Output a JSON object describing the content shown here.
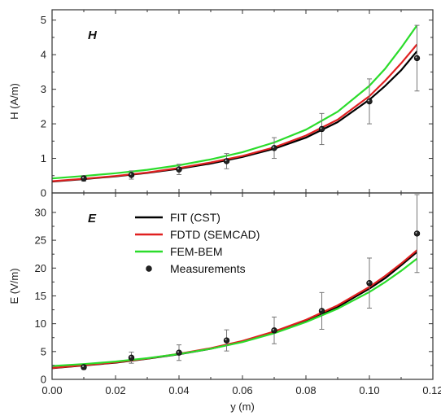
{
  "chart_data": [
    {
      "type": "line",
      "panel_tag": "H",
      "ylabel": "H (A/m)",
      "xlabel": "",
      "xlim": [
        0.0,
        0.12
      ],
      "ylim": [
        0,
        5.3
      ],
      "y_ticks": [
        0,
        1,
        2,
        3,
        4,
        5
      ],
      "x_ticks": [
        0.0,
        0.02,
        0.04,
        0.06,
        0.08,
        0.1,
        0.12
      ],
      "series": [
        {
          "name": "FIT (CST)",
          "color": "#000000",
          "kind": "curve",
          "x": [
            0.0,
            0.01,
            0.02,
            0.03,
            0.04,
            0.05,
            0.06,
            0.07,
            0.08,
            0.09,
            0.1,
            0.105,
            0.11,
            0.115
          ],
          "y": [
            0.33,
            0.4,
            0.48,
            0.58,
            0.7,
            0.85,
            1.04,
            1.28,
            1.6,
            2.05,
            2.7,
            3.1,
            3.55,
            4.1
          ]
        },
        {
          "name": "FDTD (SEMCAD)",
          "color": "#e02020",
          "kind": "curve",
          "x": [
            0.0,
            0.01,
            0.02,
            0.03,
            0.04,
            0.05,
            0.06,
            0.07,
            0.08,
            0.09,
            0.1,
            0.105,
            0.11,
            0.115
          ],
          "y": [
            0.34,
            0.41,
            0.49,
            0.59,
            0.72,
            0.88,
            1.07,
            1.32,
            1.66,
            2.12,
            2.8,
            3.25,
            3.75,
            4.3
          ]
        },
        {
          "name": "FEM-BEM",
          "color": "#2bdc2b",
          "kind": "curve",
          "x": [
            0.0,
            0.01,
            0.02,
            0.03,
            0.04,
            0.05,
            0.06,
            0.07,
            0.08,
            0.09,
            0.1,
            0.105,
            0.11,
            0.115
          ],
          "y": [
            0.42,
            0.49,
            0.57,
            0.67,
            0.8,
            0.97,
            1.18,
            1.46,
            1.83,
            2.35,
            3.1,
            3.6,
            4.2,
            4.85
          ]
        },
        {
          "name": "Measurements",
          "color": "#222222",
          "kind": "points",
          "x": [
            0.01,
            0.025,
            0.04,
            0.055,
            0.07,
            0.085,
            0.1,
            0.115
          ],
          "y": [
            0.42,
            0.52,
            0.68,
            0.92,
            1.3,
            1.85,
            2.65,
            3.9
          ],
          "err": [
            0.08,
            0.12,
            0.15,
            0.22,
            0.3,
            0.45,
            0.65,
            0.95
          ]
        }
      ]
    },
    {
      "type": "line",
      "panel_tag": "E",
      "ylabel": "E (V/m)",
      "xlabel": "y (m)",
      "xlim": [
        0.0,
        0.12
      ],
      "ylim": [
        0,
        33.5
      ],
      "y_ticks": [
        0,
        5,
        10,
        15,
        20,
        25,
        30
      ],
      "x_ticks": [
        0.0,
        0.02,
        0.04,
        0.06,
        0.08,
        0.1,
        0.12
      ],
      "x_tick_labels": [
        "0.00",
        "0.02",
        "0.04",
        "0.06",
        "0.08",
        "0.10",
        "0.12"
      ],
      "series": [
        {
          "name": "FIT (CST)",
          "color": "#000000",
          "kind": "curve",
          "x": [
            0.0,
            0.01,
            0.02,
            0.03,
            0.04,
            0.05,
            0.06,
            0.07,
            0.08,
            0.09,
            0.1,
            0.105,
            0.11,
            0.115
          ],
          "y": [
            2.0,
            2.5,
            3.0,
            3.7,
            4.5,
            5.5,
            6.8,
            8.4,
            10.5,
            13.0,
            16.3,
            18.2,
            20.5,
            22.9
          ]
        },
        {
          "name": "FDTD (SEMCAD)",
          "color": "#e02020",
          "kind": "curve",
          "x": [
            0.0,
            0.01,
            0.02,
            0.03,
            0.04,
            0.05,
            0.06,
            0.07,
            0.08,
            0.09,
            0.1,
            0.105,
            0.11,
            0.115
          ],
          "y": [
            2.05,
            2.55,
            3.05,
            3.75,
            4.6,
            5.6,
            6.9,
            8.6,
            10.7,
            13.3,
            16.6,
            18.6,
            20.8,
            23.2
          ]
        },
        {
          "name": "FEM-BEM",
          "color": "#2bdc2b",
          "kind": "curve",
          "x": [
            0.0,
            0.01,
            0.02,
            0.03,
            0.04,
            0.05,
            0.06,
            0.07,
            0.08,
            0.09,
            0.1,
            0.105,
            0.11,
            0.115
          ],
          "y": [
            2.4,
            2.75,
            3.2,
            3.8,
            4.55,
            5.5,
            6.7,
            8.3,
            10.3,
            12.7,
            15.7,
            17.5,
            19.5,
            21.7
          ]
        },
        {
          "name": "Measurements",
          "color": "#222222",
          "kind": "points",
          "x": [
            0.01,
            0.025,
            0.04,
            0.055,
            0.07,
            0.085,
            0.1,
            0.115
          ],
          "y": [
            2.2,
            3.9,
            4.8,
            7.0,
            8.8,
            12.3,
            17.3,
            26.2
          ],
          "err": [
            0.4,
            1.0,
            1.4,
            1.9,
            2.4,
            3.3,
            4.5,
            7.0
          ]
        }
      ]
    }
  ],
  "legend": {
    "placement": "inside lower panel, top-left",
    "entries": [
      {
        "label": "FIT (CST)",
        "color": "#000000",
        "kind": "line"
      },
      {
        "label": "FDTD (SEMCAD)",
        "color": "#e02020",
        "kind": "line"
      },
      {
        "label": "FEM-BEM",
        "color": "#2bdc2b",
        "kind": "line"
      },
      {
        "label": "Measurements",
        "color": "#222222",
        "kind": "point"
      }
    ]
  }
}
